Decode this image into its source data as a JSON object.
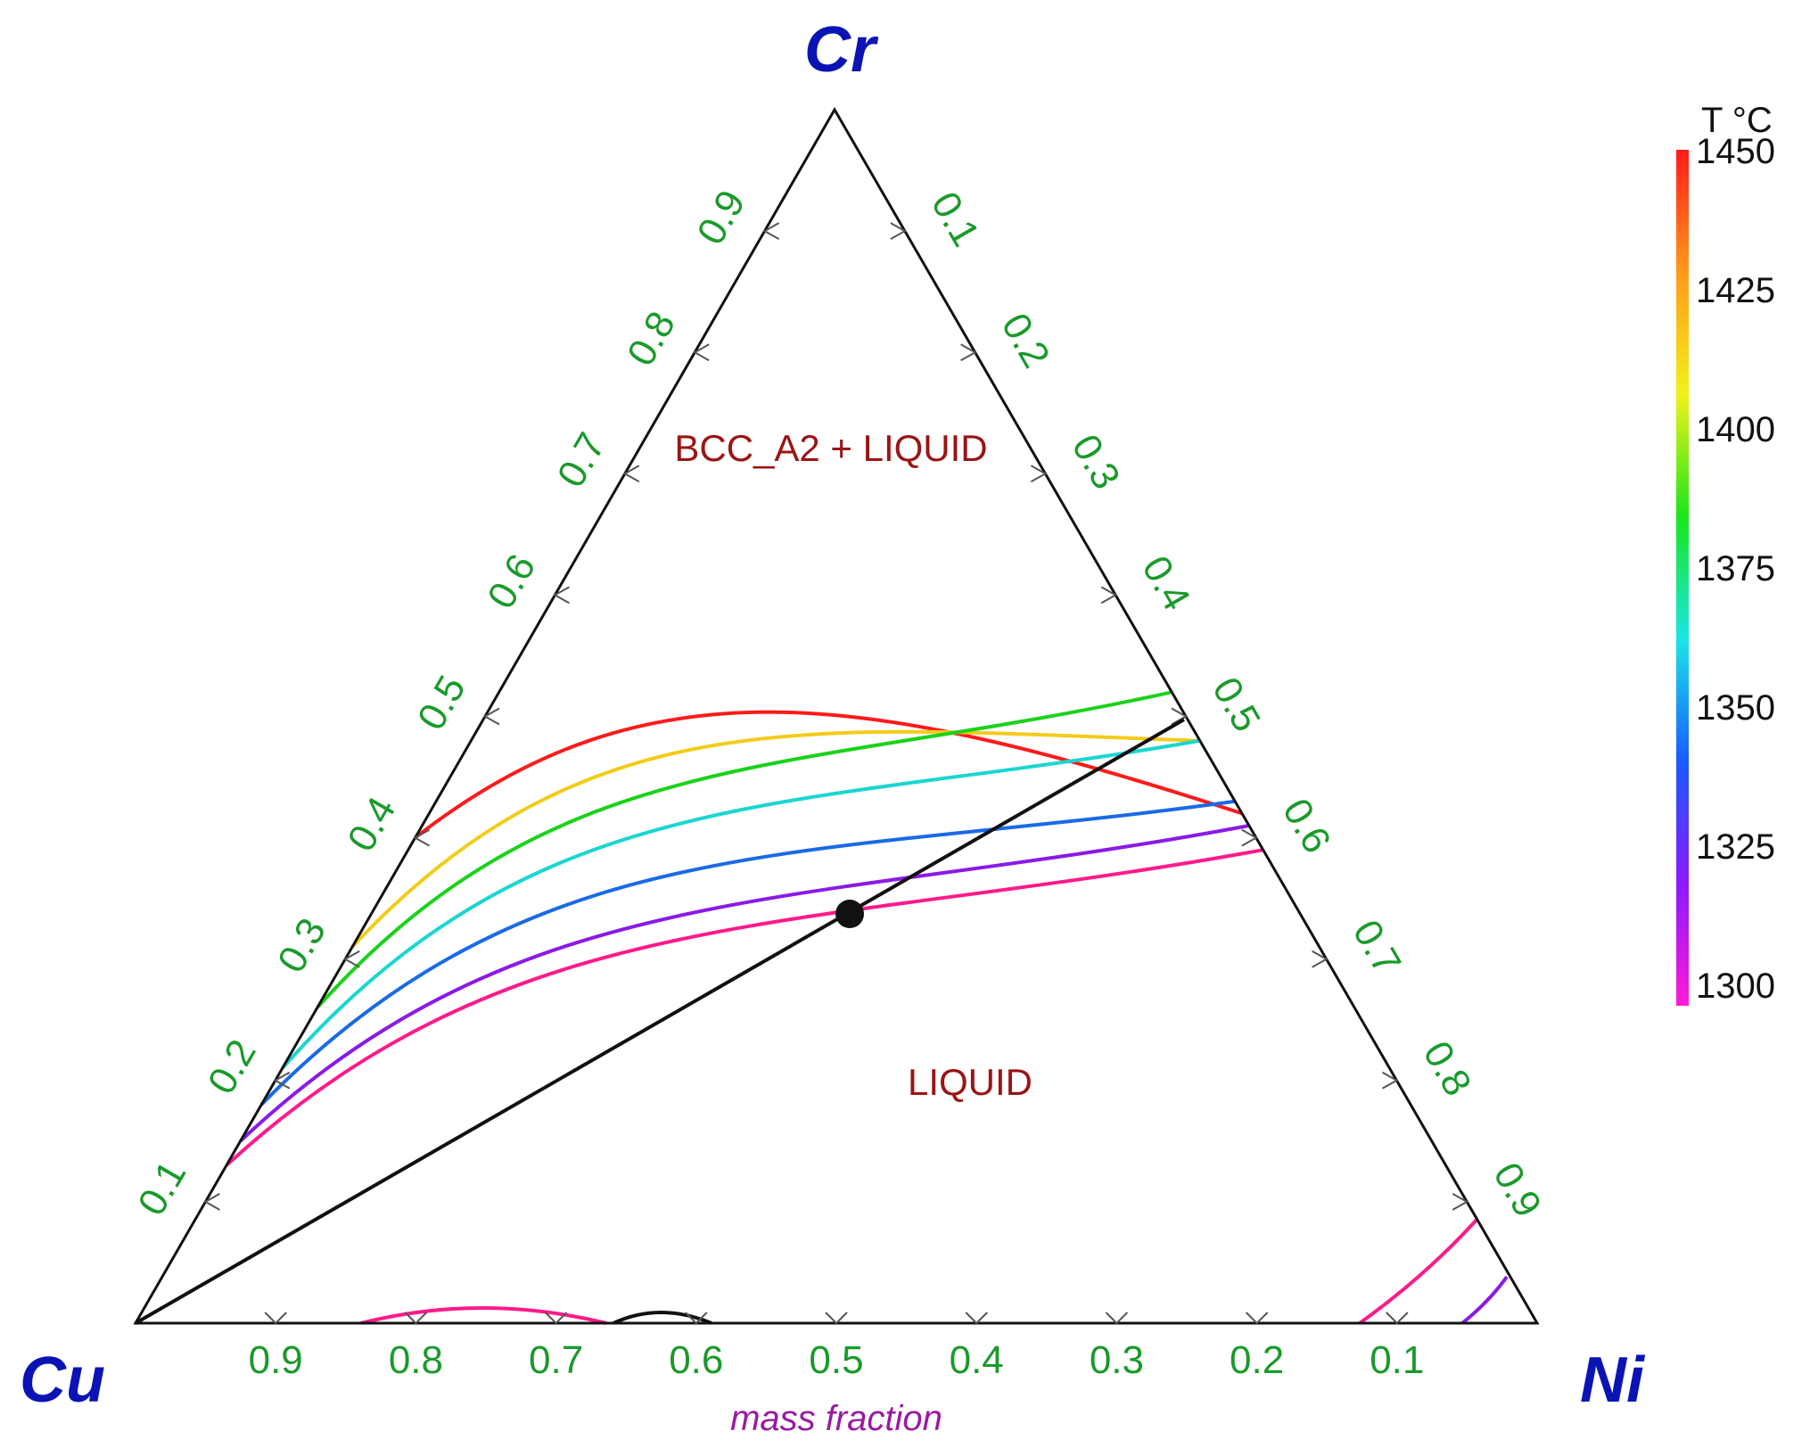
{
  "vertices": {
    "top": "Cr",
    "left": "Cu",
    "right": "Ni"
  },
  "axis_note": "mass fraction",
  "tick_values": [
    "0.1",
    "0.2",
    "0.3",
    "0.4",
    "0.5",
    "0.6",
    "0.7",
    "0.8",
    "0.9"
  ],
  "regions": {
    "upper": "BCC_A2 + LIQUID",
    "lower": "LIQUID"
  },
  "colorbar": {
    "title": "T °C",
    "ticks": [
      "1450",
      "1425",
      "1400",
      "1375",
      "1350",
      "1325",
      "1300"
    ],
    "gradient_colors": [
      "#ff1a1a",
      "#ff9a1a",
      "#f2f21a",
      "#1ae61a",
      "#1ae6e6",
      "#1a5aff",
      "#8a1aff",
      "#ff1ad6"
    ]
  },
  "chart_data": {
    "type": "ternary-isotherms",
    "components": [
      "Cu",
      "Ni",
      "Cr"
    ],
    "isotherms": [
      {
        "T": 1450,
        "color": "#ff1a1a",
        "left_cr": 0.4,
        "right_cr": 0.42,
        "peak_cr": 0.52
      },
      {
        "T": 1425,
        "color": "#f2cc1a",
        "left_cr": 0.31,
        "right_cr": 0.48,
        "peak_cr": 0.49
      },
      {
        "T": 1400,
        "color": "#1ad21a",
        "left_cr": 0.26,
        "right_cr": 0.52,
        "peak_cr": 0.45
      },
      {
        "T": 1375,
        "color": "#1ad6d0",
        "left_cr": 0.21,
        "right_cr": 0.48,
        "peak_cr": 0.42
      },
      {
        "T": 1350,
        "color": "#1a6ae6",
        "left_cr": 0.18,
        "right_cr": 0.43,
        "peak_cr": 0.38
      },
      {
        "T": 1325,
        "color": "#8a1ae6",
        "left_cr": 0.15,
        "right_cr": 0.41,
        "peak_cr": 0.34
      },
      {
        "T": 1300,
        "color": "#ff1a8a",
        "left_cr": 0.13,
        "right_cr": 0.39,
        "peak_cr": 0.32
      }
    ],
    "section_line": {
      "from": {
        "Cu": 1.0,
        "Ni": 0.0,
        "Cr": 0.0
      },
      "to": {
        "Cu": 0.0,
        "Ni": 0.51,
        "Cr": 0.49
      }
    },
    "marked_point": {
      "Cu": 0.39,
      "Ni": 0.3,
      "Cr": 0.31
    }
  }
}
